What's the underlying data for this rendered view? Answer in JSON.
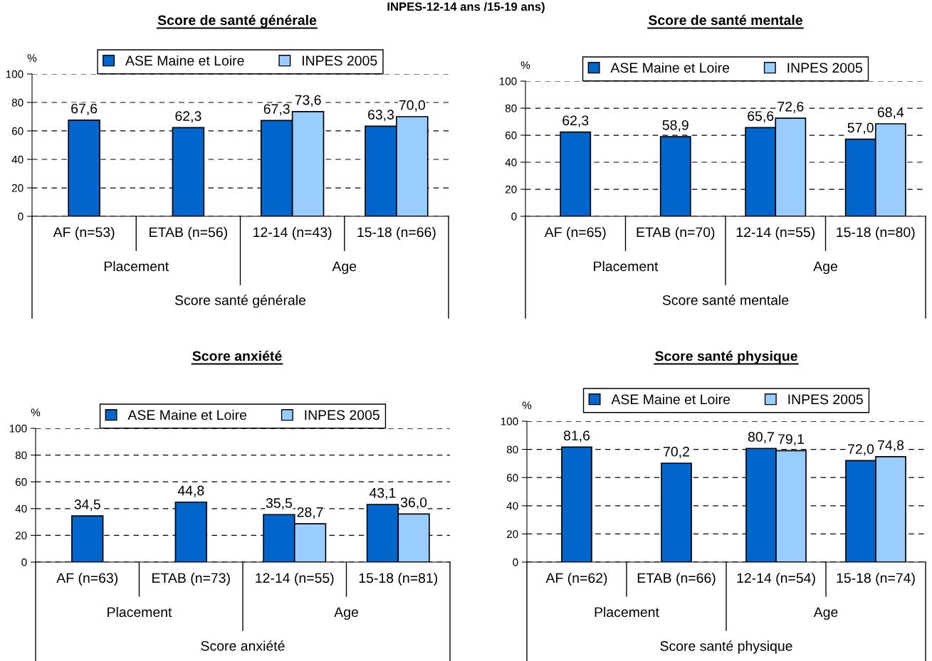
{
  "chart_data": [
    {
      "type": "bar",
      "title": "Score de santé générale",
      "ylabel": "%",
      "xlabel": "Score santé générale",
      "annotations": [
        "INPES-12-14 ans /15-19 ans)",
        "Placement",
        "Age"
      ],
      "categories": [
        "AF (n=53)",
        "ETAB (n=56)",
        "12-14 (n=43)",
        "15-18 (n=66)"
      ],
      "ylim": [
        0,
        100
      ],
      "yticks": [
        0,
        20,
        40,
        60,
        80,
        100
      ],
      "grid": "y",
      "legend": "top",
      "series": [
        {
          "name": "ASE Maine et Loire",
          "color": "#0066cc",
          "values": [
            67.6,
            62.3,
            67.3,
            63.3
          ],
          "value_labels": [
            "67,6",
            "62,3",
            "67,3",
            "63,3"
          ]
        },
        {
          "name": "INPES 2005",
          "color": "#99ccff",
          "values": [
            null,
            null,
            73.6,
            70.0
          ],
          "value_labels": [
            null,
            null,
            "73,6",
            "70,0"
          ]
        }
      ]
    },
    {
      "type": "bar",
      "title": "Score de santé mentale",
      "ylabel": "%",
      "xlabel": "Score santé mentale",
      "annotations": [
        "Placement",
        "Age"
      ],
      "categories": [
        "AF (n=65)",
        "ETAB (n=70)",
        "12-14 (n=55)",
        "15-18 (n=80)"
      ],
      "ylim": [
        0,
        100
      ],
      "yticks": [
        0,
        20,
        40,
        60,
        80,
        100
      ],
      "grid": "y",
      "legend": "top",
      "series": [
        {
          "name": "ASE Maine et Loire",
          "color": "#0066cc",
          "values": [
            62.3,
            58.9,
            65.6,
            57.0
          ],
          "value_labels": [
            "62,3",
            "58,9",
            "65,6",
            "57,0"
          ]
        },
        {
          "name": "INPES 2005",
          "color": "#99ccff",
          "values": [
            null,
            null,
            72.6,
            68.4
          ],
          "value_labels": [
            null,
            null,
            "72,6",
            "68,4"
          ]
        }
      ]
    },
    {
      "type": "bar",
      "title": "Score anxiété",
      "ylabel": "%",
      "xlabel": "Score anxiété",
      "annotations": [
        "Placement",
        "Age"
      ],
      "categories": [
        "AF (n=63)",
        "ETAB (n=73)",
        "12-14 (n=55)",
        "15-18 (n=81)"
      ],
      "ylim": [
        0,
        100
      ],
      "yticks": [
        0,
        20,
        40,
        60,
        80,
        100
      ],
      "grid": "y",
      "legend": "top",
      "series": [
        {
          "name": "ASE Maine et Loire",
          "color": "#0066cc",
          "values": [
            34.5,
            44.8,
            35.5,
            43.1
          ],
          "value_labels": [
            "34,5",
            "44,8",
            "35,5",
            "43,1"
          ]
        },
        {
          "name": "INPES 2005",
          "color": "#99ccff",
          "values": [
            null,
            null,
            28.7,
            36.0
          ],
          "value_labels": [
            null,
            null,
            "28,7",
            "36,0"
          ]
        }
      ]
    },
    {
      "type": "bar",
      "title": "Score santé physique",
      "ylabel": "%",
      "xlabel": "Score santé physique",
      "annotations": [
        "Placement",
        "Age"
      ],
      "categories": [
        "AF (n=62)",
        "ETAB (n=66)",
        "12-14 (n=54)",
        "15-18 (n=74)"
      ],
      "ylim": [
        0,
        100
      ],
      "yticks": [
        0,
        20,
        40,
        60,
        80,
        100
      ],
      "grid": "y",
      "legend": "top",
      "series": [
        {
          "name": "ASE Maine et Loire",
          "color": "#0066cc",
          "values": [
            81.6,
            70.2,
            80.7,
            72.0
          ],
          "value_labels": [
            "81,6",
            "70,2",
            "80,7",
            "72,0"
          ]
        },
        {
          "name": "INPES 2005",
          "color": "#99ccff",
          "values": [
            null,
            null,
            79.1,
            74.8
          ],
          "value_labels": [
            null,
            null,
            "79,1",
            "74,8"
          ]
        }
      ]
    }
  ]
}
